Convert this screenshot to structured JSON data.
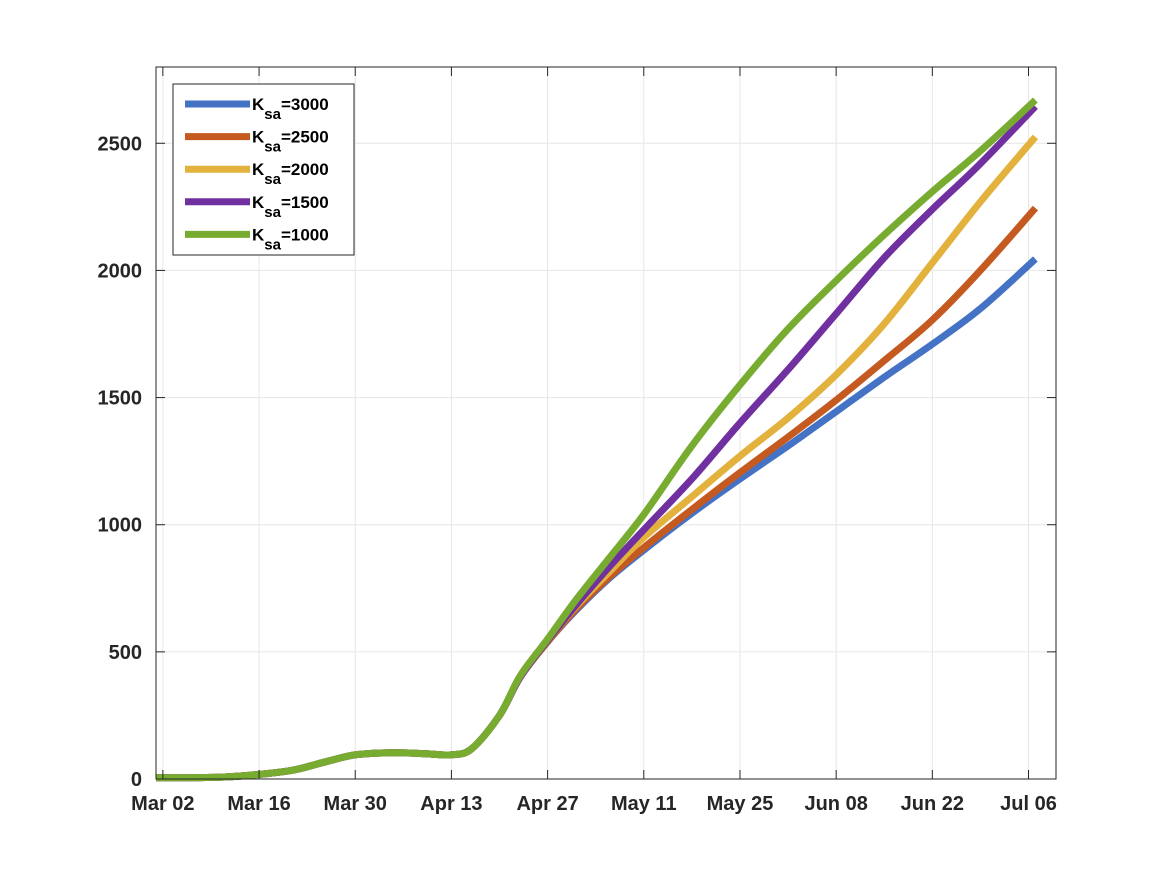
{
  "chart_data": {
    "type": "line",
    "title": "",
    "xlabel": "",
    "ylabel": "",
    "x_ticks": [
      "Mar 02",
      "Mar 16",
      "Mar 30",
      "Apr 13",
      "Apr 27",
      "May 11",
      "May 25",
      "Jun 08",
      "Jun 22",
      "Jul 06"
    ],
    "y_ticks": [
      "0",
      "500",
      "1000",
      "1500",
      "2000",
      "2500"
    ],
    "xlim": [
      "2020-03-01",
      "2020-07-10"
    ],
    "ylim": [
      0,
      2800
    ],
    "grid": true,
    "legend_position": "top-left",
    "x": [
      "2020-03-01",
      "2020-03-06",
      "2020-03-11",
      "2020-03-16",
      "2020-03-21",
      "2020-03-26",
      "2020-03-30",
      "2020-04-04",
      "2020-04-09",
      "2020-04-13",
      "2020-04-16",
      "2020-04-20",
      "2020-04-23",
      "2020-04-27",
      "2020-05-01",
      "2020-05-06",
      "2020-05-11",
      "2020-05-18",
      "2020-05-25",
      "2020-06-01",
      "2020-06-08",
      "2020-06-15",
      "2020-06-22",
      "2020-06-29",
      "2020-07-07"
    ],
    "series": [
      {
        "name": "K",
        "subscript": "sa",
        "suffix": "=3000",
        "color": "#4472C4",
        "values": [
          5,
          5,
          8,
          18,
          35,
          70,
          95,
          103,
          100,
          95,
          120,
          250,
          400,
          540,
          660,
          790,
          900,
          1045,
          1180,
          1310,
          1445,
          1580,
          1710,
          1850,
          2045
        ]
      },
      {
        "name": "K",
        "subscript": "sa",
        "suffix": "=2500",
        "color": "#C55A20",
        "values": [
          5,
          5,
          8,
          18,
          35,
          70,
          95,
          103,
          100,
          95,
          120,
          250,
          400,
          540,
          665,
          795,
          910,
          1060,
          1205,
          1345,
          1490,
          1645,
          1805,
          2000,
          2245
        ]
      },
      {
        "name": "K",
        "subscript": "sa",
        "suffix": "=2000",
        "color": "#E3B23C",
        "values": [
          5,
          5,
          8,
          18,
          35,
          70,
          95,
          103,
          100,
          95,
          120,
          250,
          400,
          545,
          675,
          815,
          950,
          1110,
          1270,
          1420,
          1590,
          1790,
          2030,
          2270,
          2525
        ]
      },
      {
        "name": "K",
        "subscript": "sa",
        "suffix": "=1500",
        "color": "#7030A0",
        "values": [
          5,
          5,
          8,
          18,
          35,
          70,
          95,
          103,
          100,
          95,
          120,
          250,
          400,
          545,
          680,
          835,
          980,
          1180,
          1400,
          1610,
          1830,
          2050,
          2240,
          2420,
          2645
        ]
      },
      {
        "name": "K",
        "subscript": "sa",
        "suffix": "=1000",
        "color": "#77AC30",
        "values": [
          5,
          5,
          8,
          18,
          35,
          70,
          95,
          103,
          100,
          95,
          120,
          250,
          405,
          550,
          700,
          870,
          1040,
          1310,
          1550,
          1770,
          1960,
          2140,
          2310,
          2470,
          2670
        ]
      }
    ]
  }
}
